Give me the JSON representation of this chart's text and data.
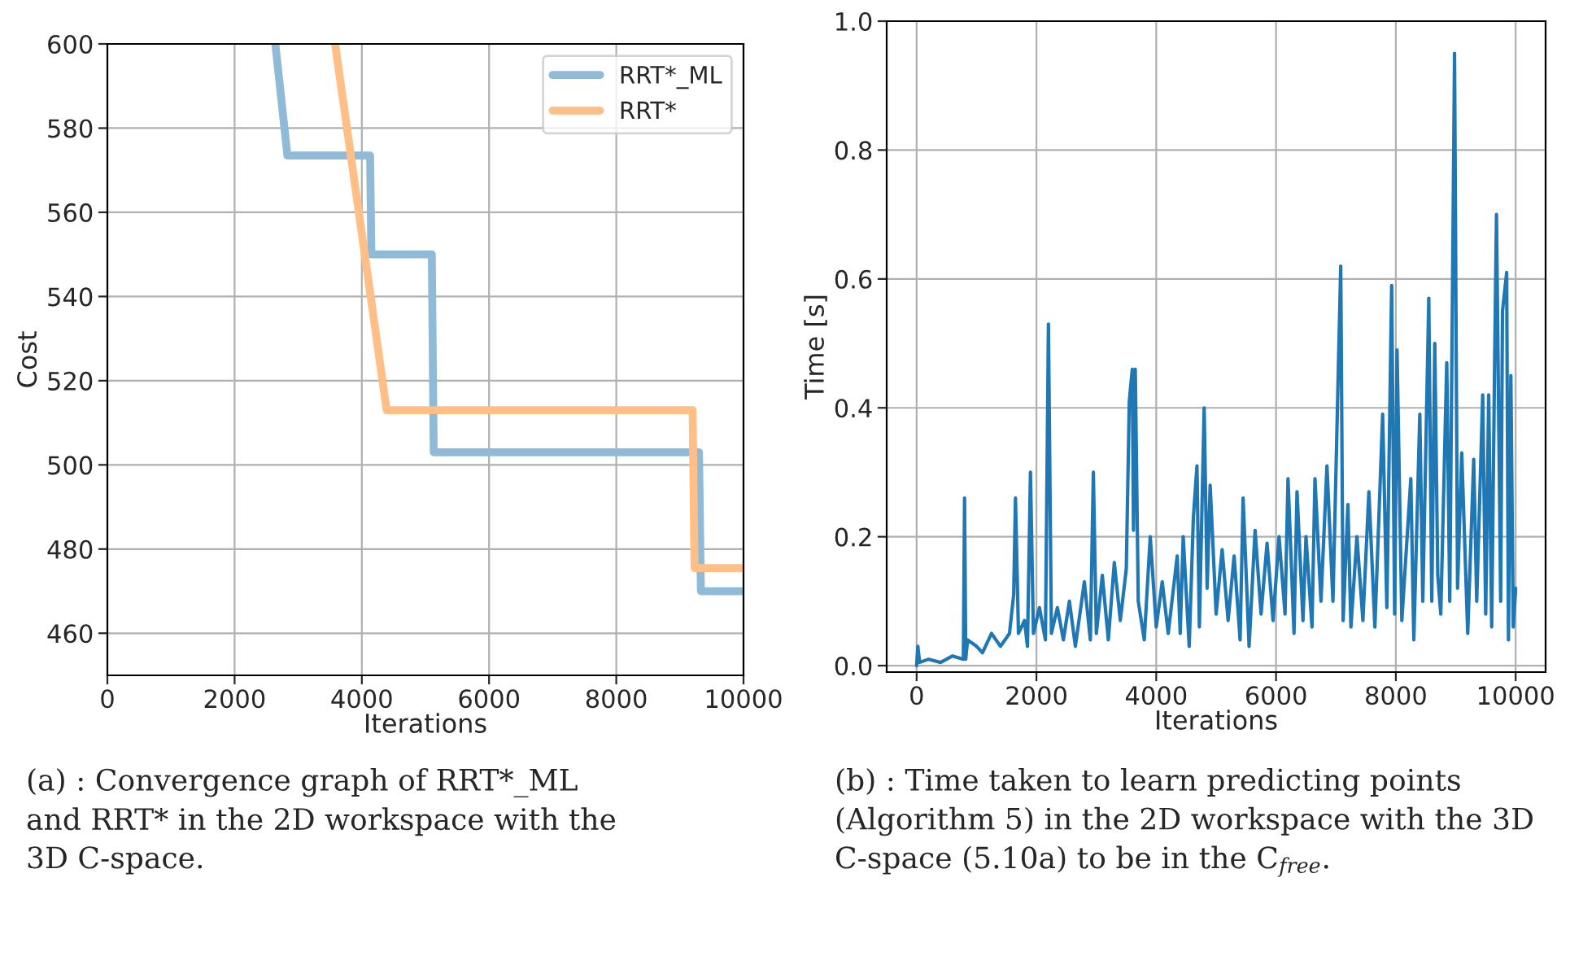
{
  "chart_data": [
    {
      "type": "line",
      "xlabel": "Iterations",
      "ylabel": "Cost",
      "xlim": [
        0,
        10000
      ],
      "ylim": [
        450,
        600
      ],
      "xticks": [
        0,
        2000,
        4000,
        6000,
        8000,
        10000
      ],
      "yticks": [
        460,
        480,
        500,
        520,
        540,
        560,
        580,
        600
      ],
      "grid": true,
      "legend": "top right",
      "series": [
        {
          "name": "RRT*_ML",
          "color": "#8fbbd9",
          "x": [
            2640,
            2830,
            4130,
            4150,
            5100,
            5130,
            9300,
            9330,
            10000
          ],
          "values": [
            600,
            573.5,
            573.5,
            550,
            550,
            503,
            503,
            470,
            470
          ]
        },
        {
          "name": "RRT*",
          "color": "#ffbf86",
          "x": [
            3580,
            4390,
            9200,
            9230,
            10000
          ],
          "values": [
            600,
            513,
            513,
            475.5,
            475.5
          ]
        }
      ],
      "annotations": [
        "(a) : Convergence graph of RRT*_ML and RRT* in the 2D workspace with the 3D C-space."
      ]
    },
    {
      "type": "line",
      "xlabel": "Iterations",
      "ylabel": "Time [s]",
      "xlim": [
        -500,
        10500
      ],
      "ylim": [
        -0.01,
        1.0
      ],
      "xticks": [
        0,
        2000,
        4000,
        6000,
        8000,
        10000
      ],
      "yticks": [
        {
          "value": 0,
          "label": "0.0"
        },
        {
          "value": 0.2,
          "label": "0.2"
        },
        {
          "value": 0.4,
          "label": "0.4"
        },
        {
          "value": 0.6,
          "label": "0.6"
        },
        {
          "value": 0.8,
          "label": "0.8"
        },
        {
          "value": 1.0,
          "label": "1.0"
        }
      ],
      "grid": true,
      "series": [
        {
          "color": "#1f77b4",
          "x": [
            0,
            20,
            50,
            200,
            400,
            600,
            780,
            800,
            820,
            850,
            1000,
            1100,
            1250,
            1400,
            1550,
            1620,
            1650,
            1700,
            1800,
            1850,
            1900,
            1950,
            2050,
            2150,
            2200,
            2250,
            2350,
            2450,
            2550,
            2650,
            2800,
            2900,
            2950,
            3000,
            3100,
            3200,
            3300,
            3400,
            3500,
            3550,
            3600,
            3620,
            3650,
            3700,
            3800,
            3900,
            4000,
            4100,
            4200,
            4350,
            4400,
            4450,
            4550,
            4620,
            4680,
            4720,
            4800,
            4850,
            4900,
            5000,
            5100,
            5200,
            5300,
            5400,
            5450,
            5550,
            5650,
            5750,
            5850,
            5950,
            6050,
            6150,
            6200,
            6300,
            6350,
            6450,
            6500,
            6600,
            6650,
            6750,
            6850,
            6950,
            7000,
            7080,
            7120,
            7200,
            7250,
            7350,
            7450,
            7550,
            7650,
            7780,
            7850,
            7930,
            7980,
            8020,
            8100,
            8250,
            8300,
            8400,
            8450,
            8550,
            8600,
            8650,
            8700,
            8750,
            8850,
            8900,
            8980,
            9030,
            9100,
            9200,
            9300,
            9350,
            9450,
            9500,
            9550,
            9600,
            9650,
            9680,
            9750,
            9780,
            9850,
            9880,
            9920,
            9960,
            10000
          ],
          "values": [
            0.0,
            0.03,
            0.005,
            0.01,
            0.005,
            0.015,
            0.01,
            0.26,
            0.01,
            0.04,
            0.03,
            0.02,
            0.05,
            0.03,
            0.05,
            0.11,
            0.26,
            0.05,
            0.07,
            0.03,
            0.3,
            0.05,
            0.09,
            0.04,
            0.53,
            0.05,
            0.09,
            0.04,
            0.1,
            0.03,
            0.13,
            0.04,
            0.3,
            0.05,
            0.14,
            0.04,
            0.16,
            0.07,
            0.15,
            0.41,
            0.46,
            0.21,
            0.46,
            0.1,
            0.04,
            0.2,
            0.06,
            0.13,
            0.05,
            0.17,
            0.05,
            0.2,
            0.03,
            0.23,
            0.31,
            0.06,
            0.4,
            0.12,
            0.28,
            0.08,
            0.18,
            0.07,
            0.17,
            0.04,
            0.26,
            0.03,
            0.21,
            0.08,
            0.19,
            0.07,
            0.2,
            0.08,
            0.29,
            0.05,
            0.27,
            0.07,
            0.2,
            0.06,
            0.29,
            0.1,
            0.31,
            0.1,
            0.3,
            0.62,
            0.07,
            0.25,
            0.06,
            0.2,
            0.07,
            0.27,
            0.06,
            0.39,
            0.09,
            0.59,
            0.08,
            0.49,
            0.07,
            0.29,
            0.04,
            0.39,
            0.1,
            0.57,
            0.1,
            0.5,
            0.14,
            0.08,
            0.47,
            0.1,
            0.95,
            0.12,
            0.33,
            0.05,
            0.32,
            0.1,
            0.42,
            0.08,
            0.42,
            0.06,
            0.48,
            0.7,
            0.1,
            0.55,
            0.61,
            0.04,
            0.45,
            0.06,
            0.12
          ]
        }
      ],
      "annotations": [
        "(b) : Time taken to learn predicting points (Algorithm 5) in the 2D workspace with the 3D C-space (5.10a) to be in the C$_{free}$."
      ]
    }
  ]
}
